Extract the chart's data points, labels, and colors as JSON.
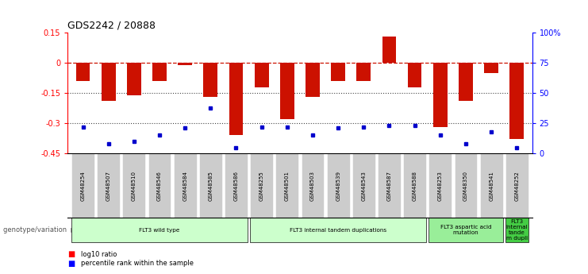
{
  "title": "GDS2242 / 20888",
  "samples": [
    "GSM48254",
    "GSM48507",
    "GSM48510",
    "GSM48546",
    "GSM48584",
    "GSM48585",
    "GSM48586",
    "GSM48255",
    "GSM48501",
    "GSM48503",
    "GSM48539",
    "GSM48543",
    "GSM48587",
    "GSM48588",
    "GSM48253",
    "GSM48350",
    "GSM48541",
    "GSM48252"
  ],
  "log10_ratio": [
    -0.09,
    -0.19,
    -0.16,
    -0.09,
    -0.01,
    -0.17,
    -0.36,
    -0.12,
    -0.28,
    -0.17,
    -0.09,
    -0.09,
    0.13,
    -0.12,
    -0.32,
    -0.19,
    -0.05,
    -0.38
  ],
  "percentile_rank": [
    22,
    8,
    10,
    15,
    21,
    38,
    5,
    22,
    22,
    15,
    21,
    22,
    23,
    23,
    15,
    8,
    18,
    5
  ],
  "groups": [
    {
      "label": "FLT3 wild type",
      "start": 0,
      "end": 6,
      "color": "#ccffcc"
    },
    {
      "label": "FLT3 internal tandem duplications",
      "start": 7,
      "end": 13,
      "color": "#ccffcc"
    },
    {
      "label": "FLT3 aspartic acid\nmutation",
      "start": 14,
      "end": 16,
      "color": "#99ee99"
    },
    {
      "label": "FLT3\ninternal\ntande\nm dupli",
      "start": 17,
      "end": 17,
      "color": "#44cc44"
    }
  ],
  "ylim_left": [
    -0.45,
    0.15
  ],
  "ylim_right": [
    0,
    100
  ],
  "yticks_left": [
    0.15,
    0,
    -0.15,
    -0.3,
    -0.45
  ],
  "yticks_left_labels": [
    "0.15",
    "0",
    "-0.15",
    "-0.3",
    "-0.45"
  ],
  "yticks_right_vals": [
    100,
    75,
    50,
    25,
    0
  ],
  "yticks_right_labels": [
    "100%",
    "75",
    "50",
    "25",
    "0"
  ],
  "bar_color": "#cc1100",
  "dot_color": "#0000cc",
  "background_color": "#ffffff",
  "label_box_color": "#cccccc",
  "hline_color": "#cc1100",
  "dotline_color": "#444444"
}
